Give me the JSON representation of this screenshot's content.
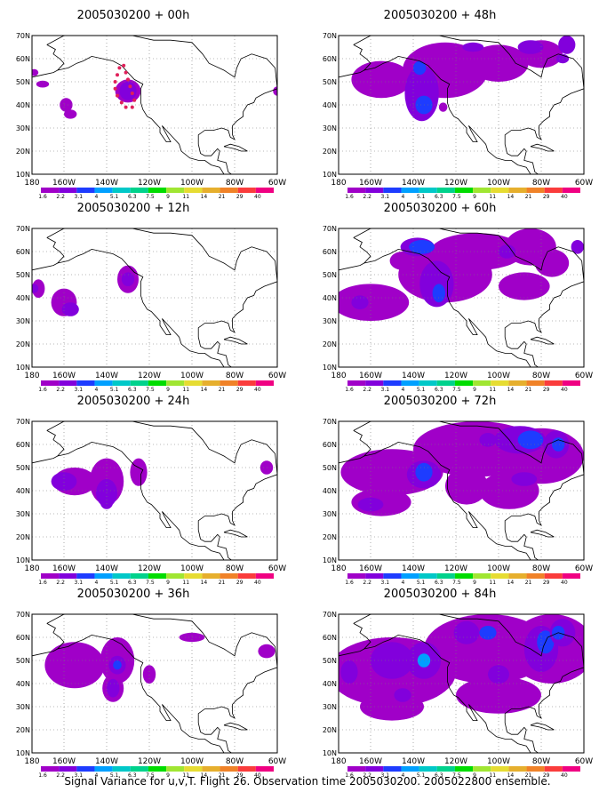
{
  "figure": {
    "caption": "Signal Variance for u,v,T. Flight 26. Observation time 2005030200. 2005022800 ensemble."
  },
  "axes": {
    "lat_labels": [
      "70N",
      "60N",
      "50N",
      "40N",
      "30N",
      "20N",
      "10N"
    ],
    "lon_labels": [
      "180",
      "160W",
      "140W",
      "120W",
      "100W",
      "80W",
      "60W"
    ],
    "lat_range": [
      10,
      70
    ],
    "lon_range": [
      -175,
      -60
    ]
  },
  "colorbar": {
    "labels": [
      "1.6",
      "2.2",
      "3.1",
      "4",
      "5.1",
      "6.3",
      "7.5",
      "9",
      "11",
      "14",
      "21",
      "29",
      "40"
    ],
    "colors": [
      "#a000c8",
      "#8200dc",
      "#1e3cff",
      "#00a0ff",
      "#00c8c8",
      "#00d28c",
      "#00dc00",
      "#a0e632",
      "#e6dc32",
      "#e6af2d",
      "#f08228",
      "#fa3c3c",
      "#f00082"
    ]
  },
  "panels": [
    {
      "title": "2005030200 + 00h",
      "col": 0,
      "row": 0
    },
    {
      "title": "2005030200 + 48h",
      "col": 1,
      "row": 0
    },
    {
      "title": "2005030200 + 12h",
      "col": 0,
      "row": 1
    },
    {
      "title": "2005030200 + 60h",
      "col": 1,
      "row": 1
    },
    {
      "title": "2005030200 + 24h",
      "col": 0,
      "row": 2
    },
    {
      "title": "2005030200 + 72h",
      "col": 1,
      "row": 2
    },
    {
      "title": "2005030200 + 36h",
      "col": 0,
      "row": 3
    },
    {
      "title": "2005030200 + 84h",
      "col": 1,
      "row": 3
    }
  ],
  "map_colors": {
    "purple": "#a000c8",
    "violet": "#8200dc",
    "blue": "#1e3cff",
    "cyan": "#00a0ff",
    "teal": "#00c8c8",
    "coast": "#000000",
    "grid": "#777777"
  },
  "flight_track_color": "#e0205a"
}
